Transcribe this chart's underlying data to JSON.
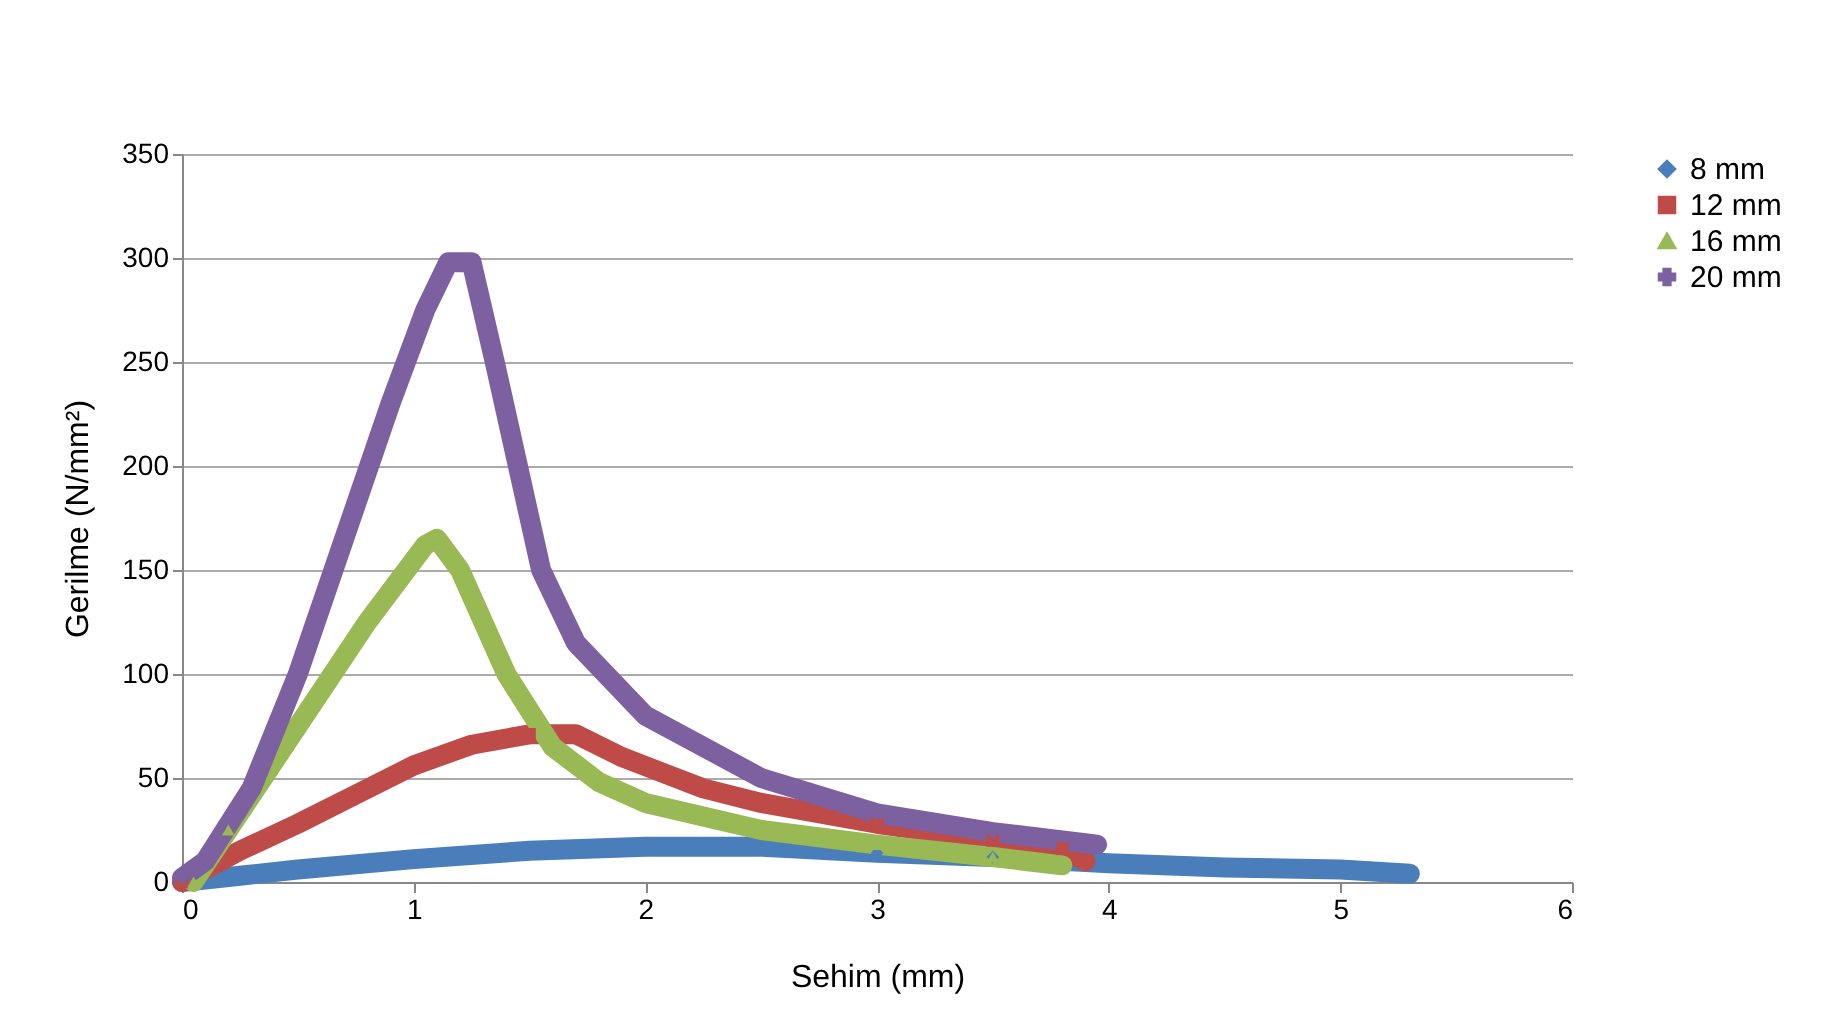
{
  "chart_data": {
    "type": "line",
    "xlabel": "Sehim (mm)",
    "ylabel": "Gerilme (N/mm²)",
    "xlim": [
      0,
      6
    ],
    "xticks": [
      0,
      1,
      2,
      3,
      4,
      5,
      6
    ],
    "ylim": [
      0,
      350
    ],
    "yticks": [
      0,
      50,
      100,
      150,
      200,
      250,
      300,
      350
    ],
    "grid": "y",
    "legend": "right",
    "series": [
      {
        "name": "8 mm",
        "color": "#4a7ebb",
        "marker": "diamond",
        "x": [
          0,
          0.25,
          0.5,
          1,
          1.5,
          2,
          2.5,
          3,
          3.5,
          4,
          4.5,
          5,
          5.3
        ],
        "values": [
          0,
          3,
          6,
          11,
          15,
          17,
          17,
          14,
          12,
          9,
          7,
          6,
          4
        ]
      },
      {
        "name": "12 mm",
        "color": "#be4b48",
        "marker": "square",
        "x": [
          0,
          0.25,
          0.5,
          0.75,
          1,
          1.25,
          1.5,
          1.7,
          1.9,
          2.25,
          2.5,
          3,
          3.5,
          3.8,
          3.9
        ],
        "values": [
          0,
          15,
          28,
          42,
          56,
          66,
          71,
          71,
          60,
          45,
          38,
          28,
          20,
          16,
          10
        ]
      },
      {
        "name": "16 mm",
        "color": "#98b954",
        "marker": "triangle",
        "x": [
          0.05,
          0.2,
          0.5,
          0.8,
          1.05,
          1.1,
          1.2,
          1.4,
          1.6,
          1.8,
          2,
          2.5,
          3,
          3.5,
          3.8
        ],
        "values": [
          0,
          25,
          75,
          125,
          162,
          165,
          150,
          100,
          65,
          48,
          38,
          25,
          18,
          12,
          8
        ]
      },
      {
        "name": "20 mm",
        "color": "#7d60a0",
        "marker": "cross",
        "x": [
          0,
          0.1,
          0.3,
          0.5,
          0.7,
          0.9,
          1.05,
          1.15,
          1.25,
          1.35,
          1.45,
          1.55,
          1.7,
          2,
          2.5,
          3,
          3.5,
          3.95
        ],
        "values": [
          2,
          10,
          45,
          100,
          165,
          230,
          275,
          298,
          298,
          250,
          200,
          150,
          115,
          80,
          50,
          33,
          24,
          18
        ]
      }
    ]
  }
}
